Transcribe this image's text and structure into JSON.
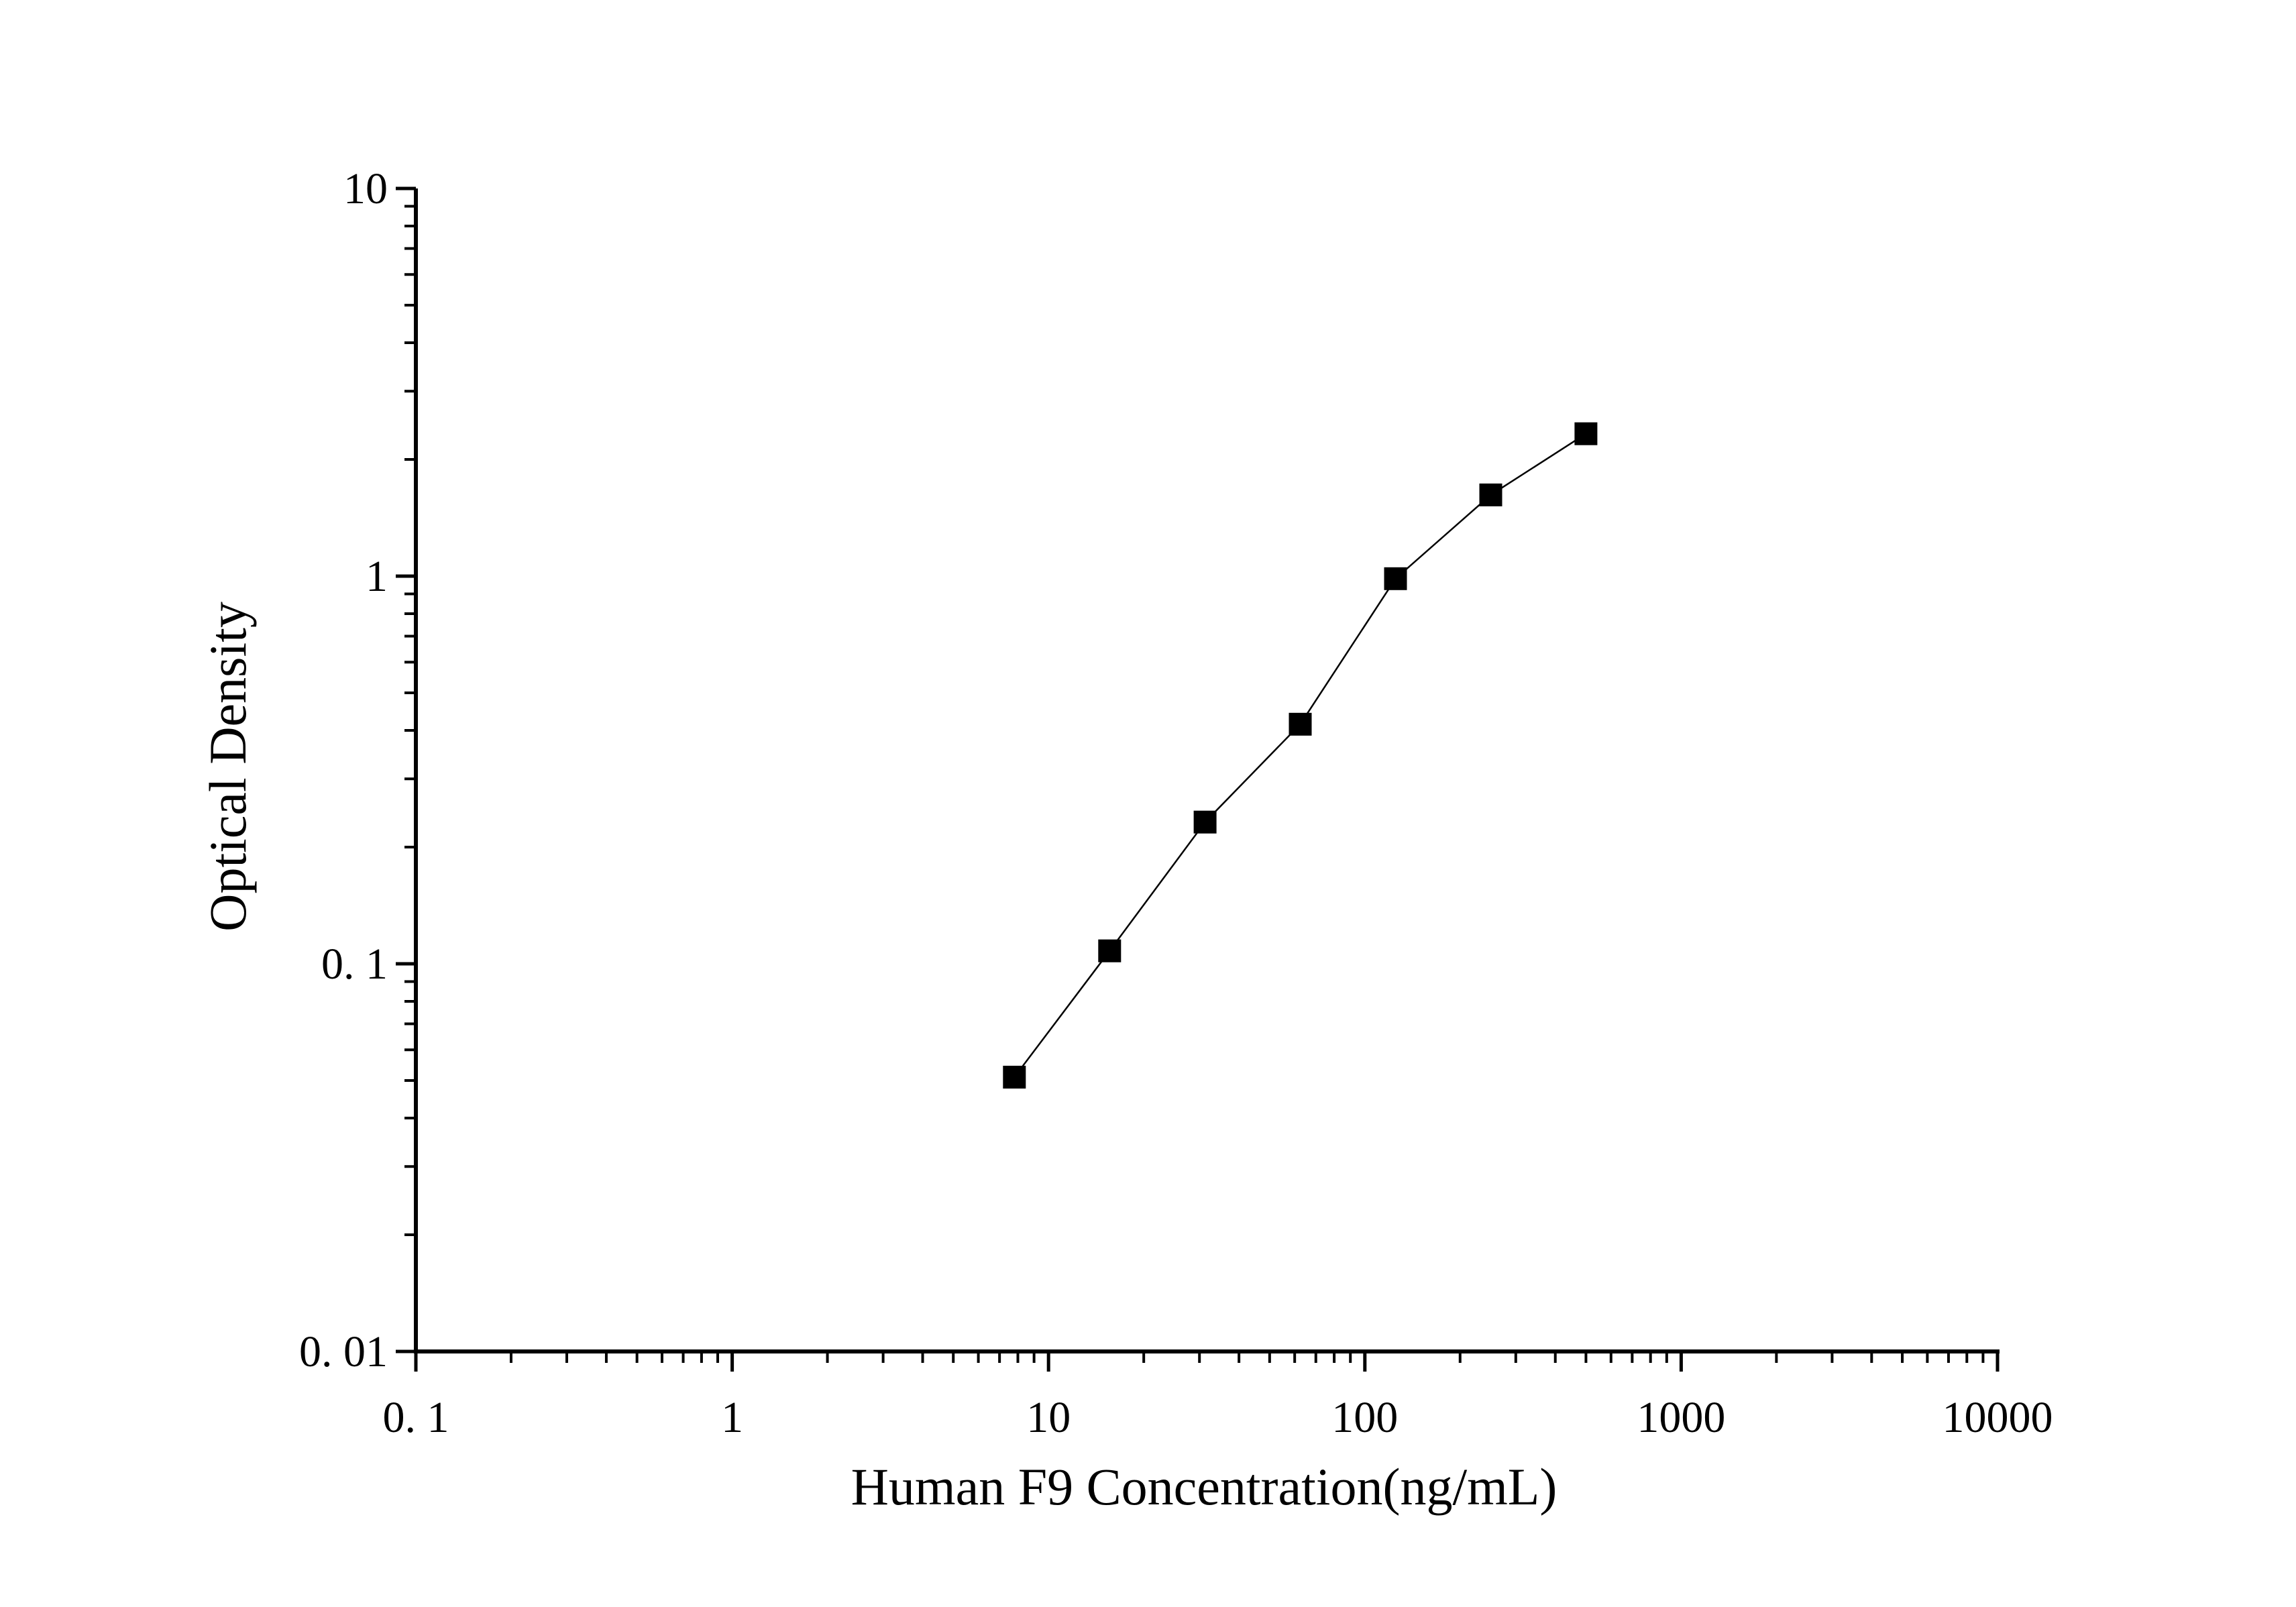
{
  "chart_data": {
    "type": "scatter",
    "title": "",
    "xlabel": "Human F9 Concentration(ng/mL)",
    "ylabel": "Optical Density",
    "xscale": "log",
    "yscale": "log",
    "xlim": [
      0.1,
      10000
    ],
    "ylim": [
      0.01,
      10
    ],
    "x_ticks": [
      {
        "value": 0.1,
        "label": "0. 1"
      },
      {
        "value": 1,
        "label": "1"
      },
      {
        "value": 10,
        "label": "10"
      },
      {
        "value": 100,
        "label": "100"
      },
      {
        "value": 1000,
        "label": "1000"
      },
      {
        "value": 10000,
        "label": "10000"
      }
    ],
    "y_ticks": [
      {
        "value": 0.01,
        "label": "0. 01"
      },
      {
        "value": 0.1,
        "label": "0. 1"
      },
      {
        "value": 1,
        "label": "1"
      },
      {
        "value": 10,
        "label": "10"
      }
    ],
    "grid": false,
    "legend": "none",
    "marker": "square",
    "connected_line": true,
    "color": "#000000",
    "series": [
      {
        "x": [
          7.8,
          15.6,
          31.25,
          62.5,
          125,
          250,
          500
        ],
        "y": [
          0.051,
          0.108,
          0.232,
          0.415,
          0.985,
          1.62,
          2.33
        ]
      }
    ]
  }
}
